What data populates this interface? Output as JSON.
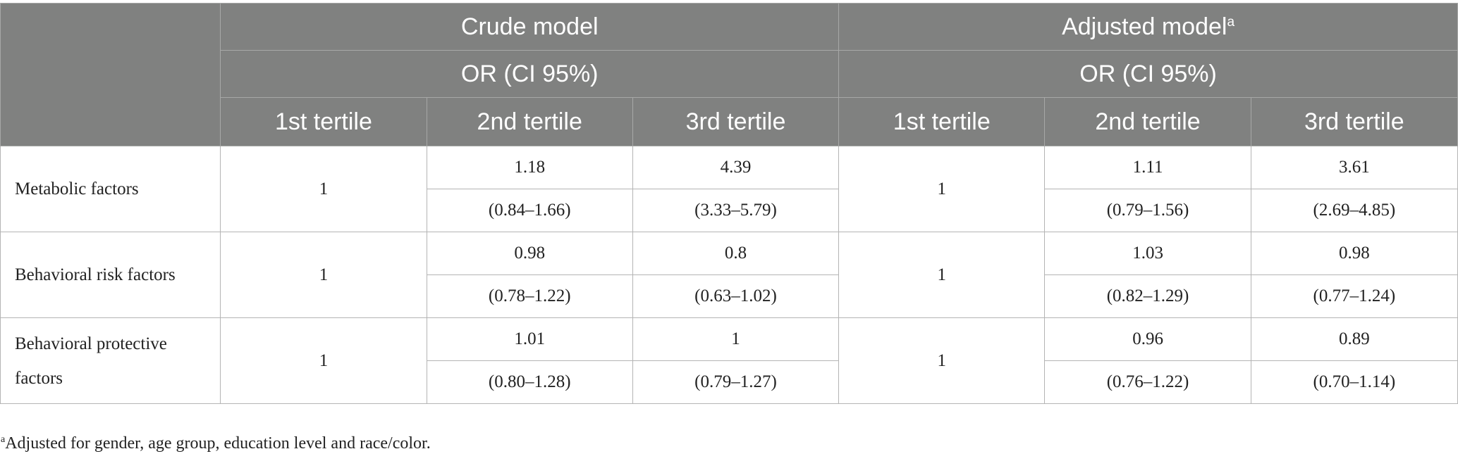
{
  "header": {
    "crude_model": "Crude model",
    "adjusted_model": "Adjusted model",
    "adjusted_marker": "a",
    "or_ci_crude": "OR (CI 95%)",
    "or_ci_adjusted": "OR (CI 95%)",
    "tertiles": [
      "1st tertile",
      "2nd tertile",
      "3rd tertile",
      "1st tertile",
      "2nd tertile",
      "3rd tertile"
    ]
  },
  "rows": [
    {
      "label": "Metabolic factors",
      "crude": {
        "t1": "1",
        "t2": "1.18",
        "t2_ci": "(0.84–1.66)",
        "t3": "4.39",
        "t3_ci": "(3.33–5.79)"
      },
      "adjusted": {
        "t1": "1",
        "t2": "1.11",
        "t2_ci": "(0.79–1.56)",
        "t3": "3.61",
        "t3_ci": "(2.69–4.85)"
      }
    },
    {
      "label": "Behavioral risk factors",
      "crude": {
        "t1": "1",
        "t2": "0.98",
        "t2_ci": "(0.78–1.22)",
        "t3": "0.8",
        "t3_ci": "(0.63–1.02)"
      },
      "adjusted": {
        "t1": "1",
        "t2": "1.03",
        "t2_ci": "(0.82–1.29)",
        "t3": "0.98",
        "t3_ci": "(0.77–1.24)"
      }
    },
    {
      "label": "Behavioral protective factors",
      "crude": {
        "t1": "1",
        "t2": "1.01",
        "t2_ci": "(0.80–1.28)",
        "t3": "1",
        "t3_ci": "(0.79–1.27)"
      },
      "adjusted": {
        "t1": "1",
        "t2": "0.96",
        "t2_ci": "(0.76–1.22)",
        "t3": "0.89",
        "t3_ci": "(0.70–1.14)"
      }
    }
  ],
  "footnote": {
    "marker": "a",
    "text": "Adjusted for gender, age group, education level and race/color."
  }
}
